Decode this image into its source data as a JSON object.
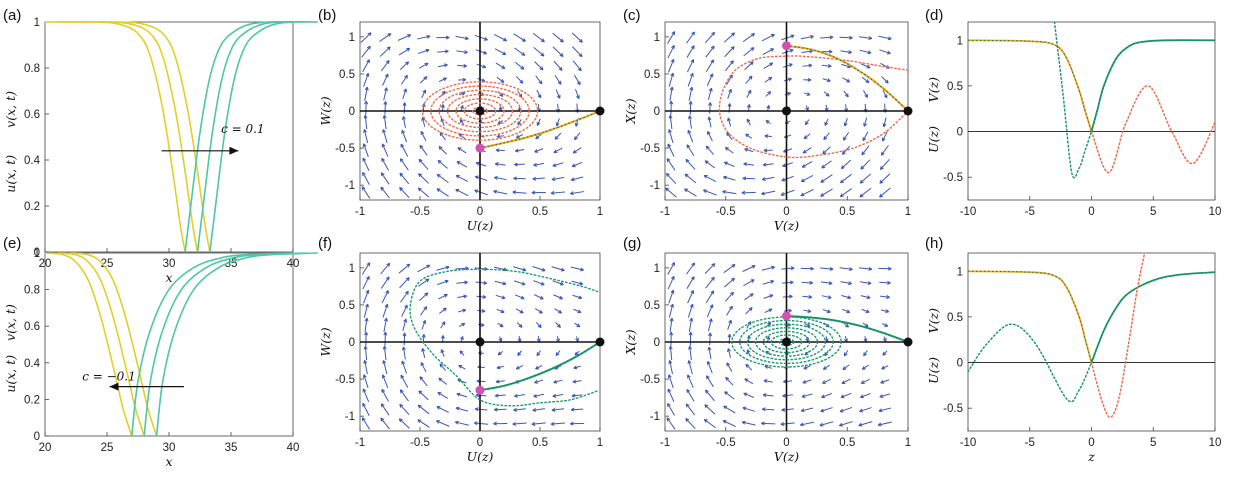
{
  "colors": {
    "yellow": "#e3cf2a",
    "teal": "#4ec7a6",
    "orange": "#f2a516",
    "green": "#1a9a6e",
    "red_dotted": "#f06a4a",
    "magenta": "#d64fb5",
    "arrow": "#3a57b5",
    "black": "#111111"
  },
  "chart_data": [
    {
      "panel": "(a)",
      "type": "line",
      "xlabel": "x",
      "ylabel_top": "v(x, t)",
      "ylabel_bottom": "u(x, t)",
      "xlim": [
        20,
        40
      ],
      "ylim": [
        0,
        1
      ],
      "xticks": [
        "20",
        "25",
        "30",
        "35",
        "40"
      ],
      "yticks": [
        "0",
        "0.2",
        "0.4",
        "0.6",
        "0.8",
        "1"
      ],
      "annotation": "c = 0.1",
      "series": [
        {
          "name": "u",
          "color": "yellow",
          "x": [
            20,
            24,
            26,
            27.5,
            28.5,
            29.5,
            30.3,
            30.9,
            31.3
          ],
          "shifts": [
            0,
            1.0,
            2.0
          ],
          "y": [
            1,
            1,
            0.99,
            0.95,
            0.85,
            0.62,
            0.35,
            0.12,
            0
          ]
        },
        {
          "name": "v",
          "color": "teal",
          "x": [
            31.3,
            31.8,
            32.5,
            33.3,
            34.2,
            35.3,
            36.5,
            38,
            40
          ],
          "shifts": [
            0,
            1.0,
            2.0
          ],
          "y": [
            0,
            0.22,
            0.52,
            0.76,
            0.9,
            0.96,
            0.99,
            1,
            1
          ]
        }
      ]
    },
    {
      "panel": "(b)",
      "type": "phase",
      "xlabel": "U(z)",
      "ylabel": "W(z)",
      "xlim": [
        -1,
        1
      ],
      "ylim": [
        -1.2,
        1.2
      ],
      "xticks": [
        "-1",
        "-0.5",
        "0",
        "0.5",
        "1"
      ],
      "yticks": [
        "-1",
        "-0.5",
        "0",
        "0.5",
        "1"
      ],
      "fixed_points": [
        [
          0,
          0
        ],
        [
          1,
          0
        ]
      ],
      "marker": [
        0,
        -0.5
      ],
      "solid": {
        "x": [
          0,
          0.2,
          0.4,
          0.6,
          0.8,
          1
        ],
        "y": [
          -0.5,
          -0.43,
          -0.35,
          -0.25,
          -0.13,
          0
        ]
      }
    },
    {
      "panel": "(c)",
      "type": "phase",
      "xlabel": "V(z)",
      "ylabel": "X(z)",
      "xlim": [
        -1,
        1
      ],
      "ylim": [
        -1.2,
        1.2
      ],
      "xticks": [
        "-1",
        "-0.5",
        "0",
        "0.5",
        "1"
      ],
      "yticks": [
        "-1",
        "-0.5",
        "0",
        "0.5",
        "1"
      ],
      "fixed_points": [
        [
          0,
          0
        ],
        [
          1,
          0
        ]
      ],
      "marker": [
        0,
        0.88
      ],
      "solid": {
        "x": [
          0,
          0.2,
          0.4,
          0.6,
          0.8,
          1
        ],
        "y": [
          0.88,
          0.83,
          0.72,
          0.54,
          0.3,
          0
        ]
      }
    },
    {
      "panel": "(d)",
      "type": "line",
      "xlabel": "",
      "ylabel_top": "V(z)",
      "ylabel_bottom": "U(z)",
      "xlim": [
        -10,
        10
      ],
      "ylim": [
        -0.75,
        1.2
      ],
      "xticks": [
        "-10",
        "-5",
        "0",
        "5",
        "10"
      ],
      "yticks": [
        "-0.5",
        "0",
        "0.5",
        "1"
      ],
      "series": [
        {
          "name": "U",
          "color": "orange",
          "x": [
            -10,
            -5,
            -3,
            -2,
            -1,
            -0.5,
            0
          ],
          "y": [
            1,
            0.99,
            0.95,
            0.8,
            0.45,
            0.22,
            0
          ]
        },
        {
          "name": "V",
          "color": "green",
          "x": [
            0,
            0.5,
            1,
            2,
            3,
            4,
            6,
            10
          ],
          "y": [
            0,
            0.25,
            0.5,
            0.8,
            0.93,
            0.98,
            1,
            1
          ]
        },
        {
          "name": "U_ext",
          "color": "red_dotted",
          "x": [
            0,
            1.4,
            2.8,
            4.6,
            6.5,
            8.2,
            10
          ],
          "y": [
            0,
            -0.45,
            0.1,
            0.5,
            0.0,
            -0.35,
            0.1
          ]
        },
        {
          "name": "V_ext",
          "color": "green",
          "x": [
            -3,
            -2.3,
            -1.6,
            -1,
            -0.5,
            0
          ],
          "y": [
            1.2,
            0.4,
            -0.45,
            -0.4,
            -0.2,
            0
          ]
        }
      ]
    },
    {
      "panel": "(e)",
      "type": "line",
      "xlabel": "x",
      "ylabel_top": "v(x, t)",
      "ylabel_bottom": "u(x, t)",
      "xlim": [
        20,
        40
      ],
      "ylim": [
        0,
        1
      ],
      "xticks": [
        "20",
        "25",
        "30",
        "35",
        "40"
      ],
      "yticks": [
        "0",
        "0.2",
        "0.4",
        "0.6",
        "0.8",
        "1"
      ],
      "annotation": "c = −0.1",
      "series": [
        {
          "name": "u",
          "color": "yellow",
          "x": [
            20,
            21.5,
            22.5,
            23.5,
            24.5,
            25.5,
            26.3,
            27
          ],
          "shifts": [
            0,
            1.0,
            2.0
          ],
          "y": [
            1,
            0.99,
            0.95,
            0.85,
            0.65,
            0.38,
            0.15,
            0
          ]
        },
        {
          "name": "v",
          "color": "teal",
          "x": [
            27,
            27.5,
            28.5,
            30,
            32,
            34,
            36,
            40
          ],
          "shifts": [
            0,
            1.0,
            2.0
          ],
          "y": [
            0,
            0.3,
            0.58,
            0.8,
            0.92,
            0.97,
            0.99,
            1
          ]
        }
      ]
    },
    {
      "panel": "(f)",
      "type": "phase",
      "xlabel": "U(z)",
      "ylabel": "W(z)",
      "xlim": [
        -1,
        1
      ],
      "ylim": [
        -1.2,
        1.2
      ],
      "xticks": [
        "-1",
        "-0.5",
        "0",
        "0.5",
        "1"
      ],
      "yticks": [
        "-1",
        "-0.5",
        "0",
        "0.5",
        "1"
      ],
      "fixed_points": [
        [
          0,
          0
        ],
        [
          1,
          0
        ]
      ],
      "marker": [
        0,
        -0.65
      ],
      "solid": {
        "x": [
          0,
          0.2,
          0.4,
          0.6,
          0.8,
          1
        ],
        "y": [
          -0.65,
          -0.59,
          -0.49,
          -0.36,
          -0.2,
          0
        ]
      }
    },
    {
      "panel": "(g)",
      "type": "phase",
      "xlabel": "V(z)",
      "ylabel": "X(z)",
      "xlim": [
        -1,
        1
      ],
      "ylim": [
        -1.2,
        1.2
      ],
      "xticks": [
        "-1",
        "-0.5",
        "0",
        "0.5",
        "1"
      ],
      "yticks": [
        "-1",
        "-0.5",
        "0",
        "0.5",
        "1"
      ],
      "fixed_points": [
        [
          0,
          0
        ],
        [
          1,
          0
        ]
      ],
      "marker": [
        0,
        0.35
      ],
      "solid": {
        "x": [
          0,
          0.2,
          0.4,
          0.6,
          0.8,
          1
        ],
        "y": [
          0.35,
          0.33,
          0.29,
          0.22,
          0.12,
          0
        ]
      }
    },
    {
      "panel": "(h)",
      "type": "line",
      "xlabel": "z",
      "ylabel_top": "V(z)",
      "ylabel_bottom": "U(z)",
      "xlim": [
        -10,
        10
      ],
      "ylim": [
        -0.75,
        1.2
      ],
      "xticks": [
        "-10",
        "-5",
        "0",
        "5",
        "10"
      ],
      "yticks": [
        "-0.5",
        "0",
        "0.5",
        "1"
      ],
      "series": [
        {
          "name": "U",
          "color": "orange",
          "x": [
            -10,
            -5,
            -3,
            -2,
            -1,
            -0.5,
            0
          ],
          "y": [
            1,
            0.99,
            0.95,
            0.82,
            0.5,
            0.25,
            0
          ]
        },
        {
          "name": "V",
          "color": "green",
          "x": [
            0,
            1,
            2,
            3,
            5,
            7,
            10
          ],
          "y": [
            0,
            0.35,
            0.6,
            0.76,
            0.9,
            0.96,
            0.99
          ]
        },
        {
          "name": "U_ext",
          "color": "red_dotted",
          "x": [
            0,
            0.8,
            1.5,
            2.2,
            3,
            3.7,
            4.3
          ],
          "y": [
            0,
            -0.4,
            -0.6,
            -0.4,
            0.2,
            0.8,
            1.2
          ]
        },
        {
          "name": "V_ext",
          "color": "green",
          "x": [
            -10,
            -8.5,
            -6.5,
            -4.5,
            -2,
            -1,
            0
          ],
          "y": [
            -0.1,
            0.2,
            0.42,
            0.2,
            -0.4,
            -0.3,
            0
          ]
        }
      ]
    }
  ]
}
